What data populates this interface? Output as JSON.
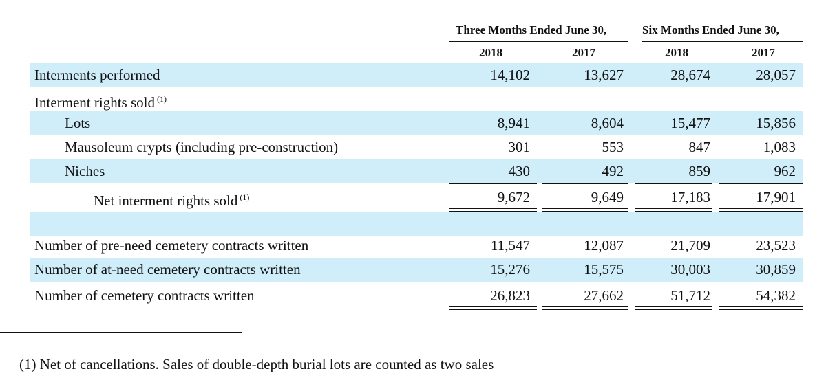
{
  "header": {
    "group1": "Three Months Ended June 30,",
    "group2": "Six Months Ended June 30,",
    "years": [
      "2018",
      "2017",
      "2018",
      "2017"
    ]
  },
  "rows": [
    {
      "label": "Interments performed",
      "sup": "",
      "values": [
        "14,102",
        "13,627",
        "28,674",
        "28,057"
      ]
    },
    {
      "label": "Interment rights sold",
      "sup": "(1)",
      "values": [
        "",
        "",
        "",
        ""
      ]
    },
    {
      "label": "Lots",
      "sup": "",
      "values": [
        "8,941",
        "8,604",
        "15,477",
        "15,856"
      ]
    },
    {
      "label": "Mausoleum crypts (including pre-construction)",
      "sup": "",
      "values": [
        "301",
        "553",
        "847",
        "1,083"
      ]
    },
    {
      "label": "Niches",
      "sup": "",
      "values": [
        "430",
        "492",
        "859",
        "962"
      ]
    },
    {
      "label": "Net interment rights sold",
      "sup": "(1)",
      "values": [
        "9,672",
        "9,649",
        "17,183",
        "17,901"
      ]
    },
    {
      "label": "",
      "sup": "",
      "values": [
        "",
        "",
        "",
        ""
      ]
    },
    {
      "label": "Number of pre-need cemetery contracts written",
      "sup": "",
      "values": [
        "11,547",
        "12,087",
        "21,709",
        "23,523"
      ]
    },
    {
      "label": "Number of at-need cemetery contracts written",
      "sup": "",
      "values": [
        "15,276",
        "15,575",
        "30,003",
        "30,859"
      ]
    },
    {
      "label": "Number of cemetery contracts written",
      "sup": "",
      "values": [
        "26,823",
        "27,662",
        "51,712",
        "54,382"
      ]
    }
  ],
  "footnote": "(1)  Net of cancellations. Sales of double-depth burial lots are counted as two sales"
}
